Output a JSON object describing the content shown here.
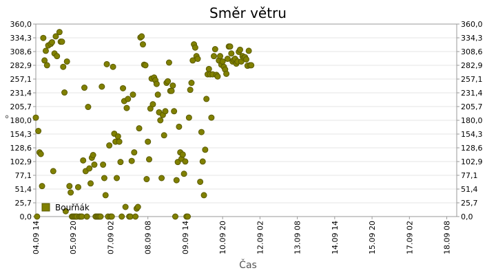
{
  "chart_data": {
    "type": "scatter",
    "title": "Směr větru",
    "xlabel": "Čas",
    "ylabel": "°",
    "ylim": [
      0,
      360
    ],
    "y_ticks": [
      "0,0",
      "25,7",
      "51,4",
      "77,1",
      "102,9",
      "128,6",
      "154,3",
      "180,0",
      "205,7",
      "231,4",
      "257,1",
      "282,9",
      "308,6",
      "334,3",
      "360,0"
    ],
    "x_ticks": [
      "04.09 14",
      "05.09 20",
      "07.09 02",
      "08.09 08",
      "09.09 14",
      "10.09 20",
      "12.09 02",
      "13.09 08",
      "14.09 14",
      "15.09 20",
      "17.09 02",
      "18.09 08"
    ],
    "x_tick_hours": [
      0,
      30,
      60,
      90,
      120,
      150,
      180,
      210,
      240,
      270,
      300,
      330
    ],
    "x_range_hours": [
      0,
      338
    ],
    "grid": true,
    "legend_position": "bottom-left",
    "marker_color": "#808000",
    "series": [
      {
        "name": "Bouřňák",
        "points": [
          [
            0,
            185
          ],
          [
            1,
            0
          ],
          [
            2,
            160
          ],
          [
            3,
            120
          ],
          [
            4,
            117
          ],
          [
            5,
            57
          ],
          [
            6,
            334
          ],
          [
            7,
            292
          ],
          [
            8,
            310
          ],
          [
            9,
            283
          ],
          [
            10,
            320
          ],
          [
            12,
            323
          ],
          [
            13,
            326
          ],
          [
            14,
            85
          ],
          [
            15,
            305
          ],
          [
            16,
            337
          ],
          [
            17,
            300
          ],
          [
            19,
            345
          ],
          [
            20,
            327
          ],
          [
            21,
            327
          ],
          [
            22,
            280
          ],
          [
            23,
            232
          ],
          [
            24,
            10
          ],
          [
            25,
            290
          ],
          [
            27,
            57
          ],
          [
            28,
            45
          ],
          [
            29,
            0
          ],
          [
            30,
            0
          ],
          [
            31,
            0
          ],
          [
            32,
            0
          ],
          [
            33,
            0
          ],
          [
            34,
            55
          ],
          [
            35,
            0
          ],
          [
            36,
            0
          ],
          [
            37,
            0
          ],
          [
            38,
            105
          ],
          [
            39,
            241
          ],
          [
            40,
            85
          ],
          [
            41,
            0
          ],
          [
            42,
            205
          ],
          [
            43,
            90
          ],
          [
            44,
            62
          ],
          [
            45,
            110
          ],
          [
            46,
            115
          ],
          [
            47,
            97
          ],
          [
            48,
            0
          ],
          [
            49,
            0
          ],
          [
            50,
            0
          ],
          [
            51,
            0
          ],
          [
            52,
            0
          ],
          [
            53,
            243
          ],
          [
            54,
            97
          ],
          [
            55,
            72
          ],
          [
            56,
            40
          ],
          [
            57,
            285
          ],
          [
            58,
            0
          ],
          [
            59,
            133
          ],
          [
            60,
            0
          ],
          [
            61,
            0
          ],
          [
            62,
            280
          ],
          [
            63,
            155
          ],
          [
            64,
            140
          ],
          [
            65,
            72
          ],
          [
            66,
            150
          ],
          [
            67,
            140
          ],
          [
            68,
            102
          ],
          [
            69,
            0
          ],
          [
            70,
            240
          ],
          [
            71,
            216
          ],
          [
            72,
            18
          ],
          [
            73,
            203
          ],
          [
            74,
            220
          ],
          [
            75,
            0
          ],
          [
            76,
            0
          ],
          [
            77,
            104
          ],
          [
            78,
            228
          ],
          [
            79,
            120
          ],
          [
            80,
            0
          ],
          [
            81,
            15
          ],
          [
            82,
            18
          ],
          [
            83,
            165
          ],
          [
            84,
            335
          ],
          [
            85,
            337
          ],
          [
            86,
            322
          ],
          [
            87,
            284
          ],
          [
            88,
            283
          ],
          [
            89,
            70
          ],
          [
            90,
            140
          ],
          [
            91,
            107
          ],
          [
            92,
            202
          ],
          [
            93,
            258
          ],
          [
            94,
            210
          ],
          [
            95,
            260
          ],
          [
            96,
            255
          ],
          [
            97,
            248
          ],
          [
            98,
            228
          ],
          [
            99,
            195
          ],
          [
            100,
            180
          ],
          [
            101,
            72
          ],
          [
            102,
            190
          ],
          [
            103,
            152
          ],
          [
            104,
            197
          ],
          [
            105,
            250
          ],
          [
            106,
            253
          ],
          [
            107,
            288
          ],
          [
            108,
            235
          ],
          [
            109,
            235
          ],
          [
            110,
            245
          ],
          [
            111,
            197
          ],
          [
            112,
            0
          ],
          [
            113,
            68
          ],
          [
            114,
            102
          ],
          [
            115,
            168
          ],
          [
            116,
            120
          ],
          [
            117,
            108
          ],
          [
            118,
            116
          ],
          [
            119,
            80
          ],
          [
            120,
            103
          ],
          [
            121,
            0
          ],
          [
            122,
            0
          ],
          [
            123,
            185
          ],
          [
            124,
            237
          ],
          [
            125,
            250
          ],
          [
            126,
            292
          ],
          [
            127,
            322
          ],
          [
            128,
            316
          ],
          [
            129,
            300
          ],
          [
            130,
            295
          ],
          [
            132,
            65
          ],
          [
            133,
            158
          ],
          [
            134,
            103
          ],
          [
            135,
            40
          ],
          [
            136,
            125
          ],
          [
            137,
            220
          ],
          [
            138,
            266
          ],
          [
            139,
            276
          ],
          [
            140,
            266
          ],
          [
            141,
            185
          ],
          [
            142,
            266
          ],
          [
            143,
            300
          ],
          [
            144,
            313
          ],
          [
            145,
            265
          ],
          [
            146,
            262
          ],
          [
            147,
            292
          ],
          [
            148,
            300
          ],
          [
            149,
            284
          ],
          [
            150,
            290
          ],
          [
            151,
            280
          ],
          [
            152,
            275
          ],
          [
            153,
            267
          ],
          [
            154,
            295
          ],
          [
            155,
            318
          ],
          [
            156,
            318
          ],
          [
            157,
            305
          ],
          [
            158,
            290
          ],
          [
            159,
            293
          ],
          [
            160,
            295
          ],
          [
            161,
            286
          ],
          [
            162,
            290
          ],
          [
            163,
            308
          ],
          [
            164,
            312
          ],
          [
            165,
            290
          ],
          [
            166,
            300
          ],
          [
            167,
            297
          ],
          [
            168,
            298
          ],
          [
            169,
            294
          ],
          [
            170,
            282
          ],
          [
            171,
            310
          ],
          [
            172,
            283
          ],
          [
            173,
            283
          ]
        ]
      }
    ]
  }
}
